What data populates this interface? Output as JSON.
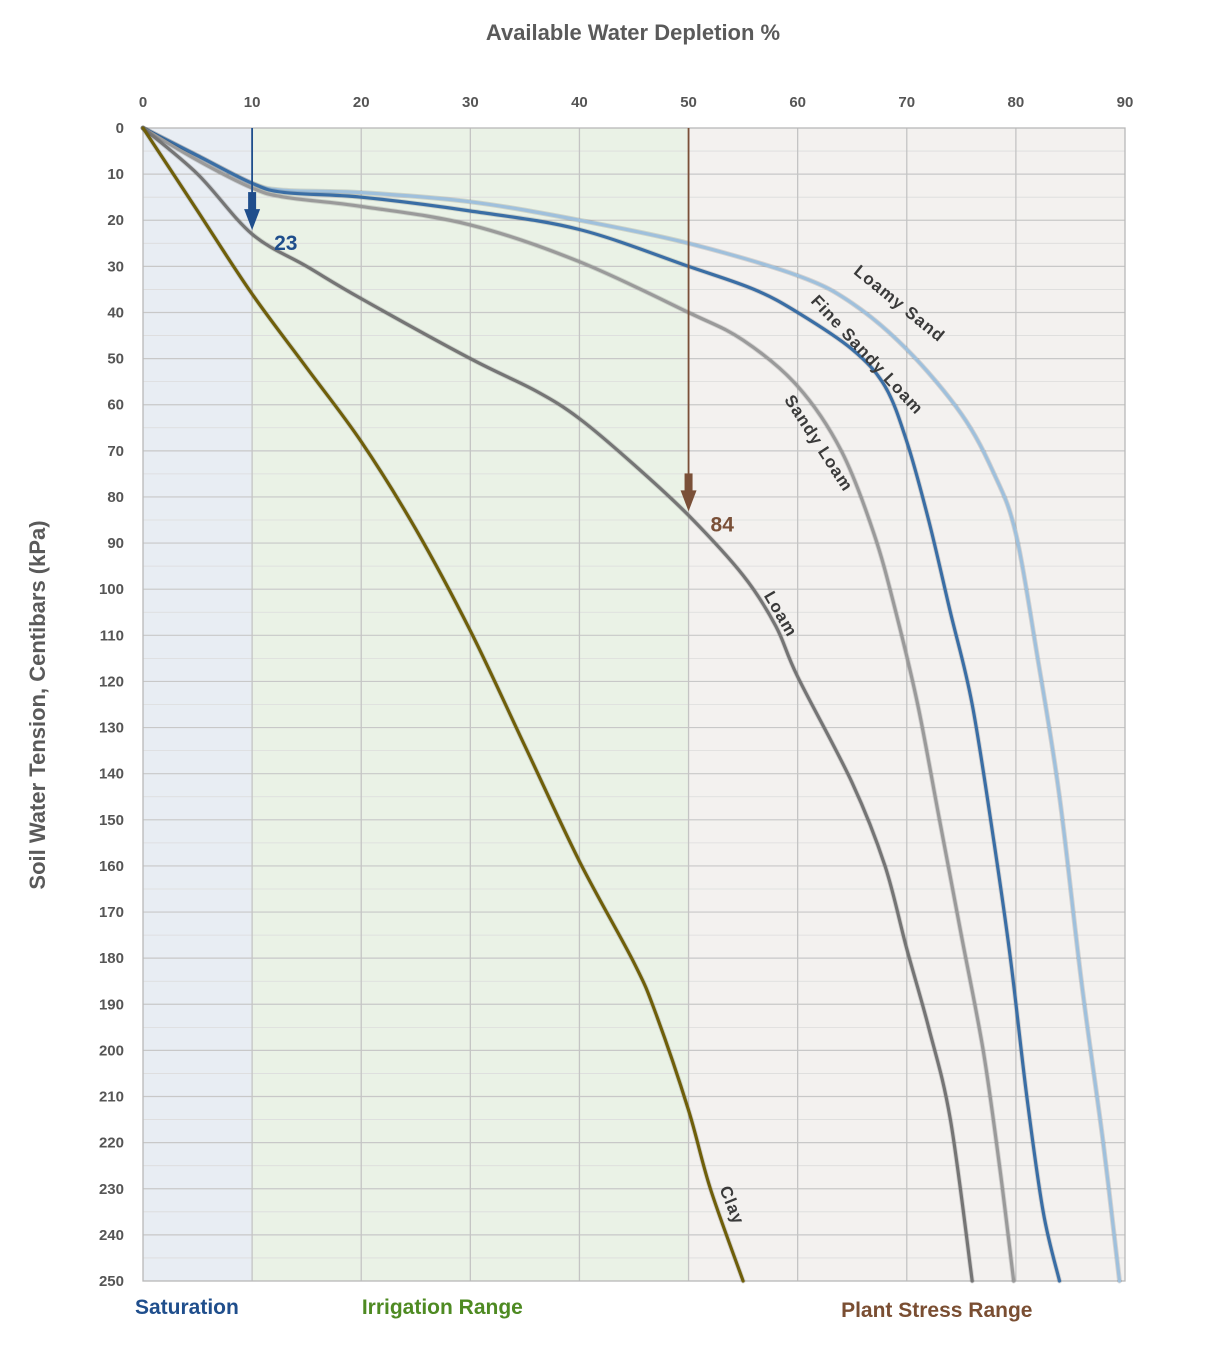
{
  "chart_data": {
    "type": "line",
    "title": "Available Water Depletion %",
    "xlabel": "Available Water Depletion %",
    "ylabel": "Soil Water Tension, Centibars (kPa)",
    "xlim": [
      0,
      90
    ],
    "ylim": [
      0,
      250
    ],
    "y_inverted": true,
    "x_axis_position": "top",
    "x_ticks": [
      0,
      10,
      20,
      30,
      40,
      50,
      60,
      70,
      80,
      90
    ],
    "y_ticks": [
      0,
      10,
      20,
      30,
      40,
      50,
      60,
      70,
      80,
      90,
      100,
      110,
      120,
      130,
      140,
      150,
      160,
      170,
      180,
      190,
      200,
      210,
      220,
      230,
      240,
      250
    ],
    "grid": true,
    "regions": [
      {
        "name": "Saturation",
        "x_start": 0,
        "x_end": 10,
        "fill": "#e8edf3",
        "label_color": "#1f4e8c"
      },
      {
        "name": "Irrigation Range",
        "x_start": 10,
        "x_end": 50,
        "fill": "#eaf2e6",
        "label_color": "#4e8a22"
      },
      {
        "name": "Plant Stress Range",
        "x_start": 50,
        "x_end": 90,
        "fill": "#f3f1ef",
        "label_color": "#7a4e32"
      }
    ],
    "series": [
      {
        "name": "Loamy Sand",
        "color": "#9fc0dc",
        "points": [
          [
            0,
            0
          ],
          [
            5,
            6
          ],
          [
            10,
            12
          ],
          [
            13,
            13.5
          ],
          [
            20,
            14
          ],
          [
            30,
            16
          ],
          [
            40,
            20
          ],
          [
            50,
            25
          ],
          [
            60,
            32
          ],
          [
            65,
            38
          ],
          [
            70,
            48
          ],
          [
            75,
            62
          ],
          [
            78,
            75
          ],
          [
            80,
            88
          ],
          [
            82,
            115
          ],
          [
            84,
            145
          ],
          [
            86,
            185
          ],
          [
            88,
            220
          ],
          [
            89.5,
            250
          ]
        ],
        "label": "Loamy Sand",
        "label_x": 69,
        "label_y": 39,
        "label_angle": 39
      },
      {
        "name": "Fine Sandy Loam",
        "color": "#3a6ea5",
        "points": [
          [
            0,
            0
          ],
          [
            5,
            6
          ],
          [
            10,
            12
          ],
          [
            13,
            14
          ],
          [
            20,
            15
          ],
          [
            30,
            18
          ],
          [
            40,
            22
          ],
          [
            50,
            30
          ],
          [
            56,
            35
          ],
          [
            60,
            40
          ],
          [
            65,
            48
          ],
          [
            68,
            56
          ],
          [
            70,
            68
          ],
          [
            72,
            85
          ],
          [
            74,
            105
          ],
          [
            76,
            125
          ],
          [
            78,
            155
          ],
          [
            79.5,
            180
          ],
          [
            81,
            210
          ],
          [
            82.5,
            235
          ],
          [
            84,
            250
          ]
        ],
        "label": "Fine Sandy Loam",
        "label_x": 66,
        "label_y": 50,
        "label_angle": 47
      },
      {
        "name": "Sandy Loam",
        "color": "#9a9a9a",
        "points": [
          [
            0,
            0
          ],
          [
            5,
            7
          ],
          [
            10,
            13
          ],
          [
            13,
            15
          ],
          [
            20,
            17
          ],
          [
            30,
            21
          ],
          [
            40,
            29
          ],
          [
            50,
            40
          ],
          [
            55,
            46
          ],
          [
            60,
            56
          ],
          [
            64,
            70
          ],
          [
            67,
            88
          ],
          [
            69,
            105
          ],
          [
            71,
            125
          ],
          [
            73,
            150
          ],
          [
            75,
            175
          ],
          [
            77,
            200
          ],
          [
            78.5,
            225
          ],
          [
            79.8,
            250
          ]
        ],
        "label": "Sandy Loam",
        "label_x": 61.5,
        "label_y": 69,
        "label_angle": 57
      },
      {
        "name": "Loam",
        "color": "#757575",
        "points": [
          [
            0,
            0
          ],
          [
            5,
            10
          ],
          [
            10,
            23
          ],
          [
            15,
            30
          ],
          [
            20,
            37
          ],
          [
            30,
            50
          ],
          [
            36,
            57
          ],
          [
            40,
            63
          ],
          [
            45,
            73
          ],
          [
            50,
            84
          ],
          [
            55,
            97
          ],
          [
            58,
            108
          ],
          [
            60,
            119
          ],
          [
            65,
            142
          ],
          [
            68,
            160
          ],
          [
            70,
            178
          ],
          [
            72,
            195
          ],
          [
            74,
            215
          ],
          [
            76,
            250
          ]
        ],
        "label": "Loam",
        "label_x": 58,
        "label_y": 106,
        "label_angle": 60
      },
      {
        "name": "Clay",
        "color": "#6f5f0a",
        "points": [
          [
            0,
            0
          ],
          [
            5,
            18
          ],
          [
            10,
            36
          ],
          [
            15,
            52
          ],
          [
            20,
            68
          ],
          [
            25,
            87
          ],
          [
            30,
            109
          ],
          [
            35,
            134
          ],
          [
            40,
            159
          ],
          [
            45,
            181
          ],
          [
            47,
            192
          ],
          [
            50,
            213
          ],
          [
            52,
            230
          ],
          [
            55,
            250
          ]
        ],
        "label": "Clay",
        "label_x": 53.5,
        "label_y": 234,
        "label_angle": 68
      }
    ],
    "annotations": [
      {
        "text": "23",
        "x": 10,
        "y": 23,
        "arrow_from_y": 0,
        "color": "#1f4e8c"
      },
      {
        "text": "84",
        "x": 50,
        "y": 84,
        "arrow_from_y": 0,
        "color": "#7a5038"
      }
    ]
  }
}
